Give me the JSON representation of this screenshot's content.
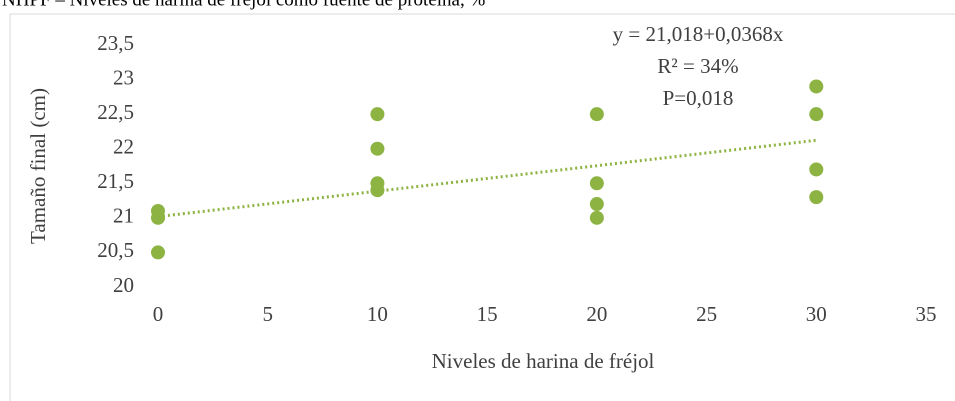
{
  "chart_data": {
    "type": "scatter",
    "title": "NHPF – Niveles de harina de fréjol como fuente de proteína, %",
    "x_label": "Niveles de harina de fréjol",
    "y_label": "Tamaño final (cm)",
    "annotations": [
      "y = 21,018+0,0368x",
      "R² = 34%",
      "P=0,018"
    ],
    "series": [
      {
        "name": "Tamaño final",
        "color": "#8db443",
        "x": [
          0,
          0,
          0,
          10,
          10,
          10,
          10,
          20,
          20,
          20,
          20,
          30,
          30,
          30,
          30
        ],
        "values": [
          21.1,
          21.0,
          20.5,
          22.5,
          22.0,
          21.5,
          21.4,
          22.5,
          21.5,
          21.2,
          21.0,
          22.9,
          22.5,
          21.7,
          21.3
        ]
      }
    ],
    "trendline": {
      "color": "#8db443",
      "x": [
        0,
        30
      ],
      "values": [
        21.018,
        22.122
      ]
    },
    "xlim": [
      0,
      35
    ],
    "xticks": [
      0,
      5,
      10,
      15,
      20,
      25,
      30,
      35
    ],
    "ylim": [
      20,
      23.5
    ],
    "yticks": [
      20,
      {
        "value": 20.5,
        "label": "20,5"
      },
      21,
      {
        "value": 21.5,
        "label": "21,5"
      },
      22,
      {
        "value": 22.5,
        "label": "22,5"
      },
      23,
      {
        "value": 23.5,
        "label": "23,5"
      }
    ]
  }
}
